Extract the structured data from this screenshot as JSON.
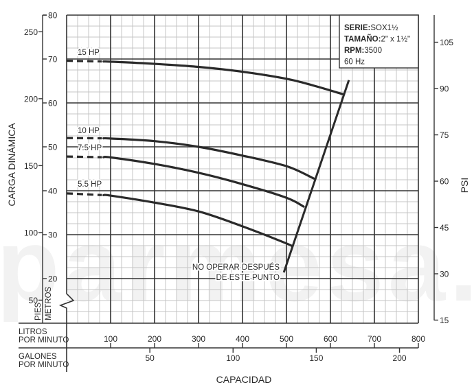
{
  "watermark": "parmesa.com",
  "chart_data": {
    "type": "line",
    "info_box": [
      {
        "key": "SERIE:",
        "value": "SOX1½"
      },
      {
        "key": "TAMAÑO:",
        "value": "2\" x 1½\""
      },
      {
        "key": "RPM:",
        "value": "3500"
      },
      {
        "key": "",
        "value": "60 Hz"
      }
    ],
    "x_axis": {
      "label": "CAPACIDAD",
      "xlim": [
        0,
        800
      ],
      "primary": {
        "label": [
          "LITROS",
          "POR MINUTO"
        ],
        "unit": "LPM",
        "ticks": [
          "100",
          "200",
          "300",
          "400",
          "500",
          "600",
          "700",
          "800"
        ]
      },
      "secondary": {
        "label": [
          "GALONES",
          "POR MINUTO"
        ],
        "unit": "GPM",
        "ticks": [
          "50",
          "100",
          "150",
          "200"
        ]
      }
    },
    "y_axis": {
      "label": "CARGA DINÁMICA",
      "ylim": [
        10,
        80
      ],
      "axis_break": true,
      "meters": {
        "label": "METROS",
        "ticks": [
          "20",
          "30",
          "40",
          "50",
          "60",
          "70",
          "80"
        ]
      },
      "feet": {
        "label": "PIES",
        "ticks": [
          "50",
          "100",
          "150",
          "200",
          "250"
        ]
      }
    },
    "y2_axis": {
      "label": "PSI",
      "ticks": [
        "15",
        "30",
        "45",
        "60",
        "75",
        "90",
        "105"
      ]
    },
    "grid": true,
    "series": [
      {
        "name": "15 HP",
        "dashed_until": 80,
        "points": [
          [
            0,
            69.6
          ],
          [
            50,
            69.5
          ],
          [
            100,
            69.4
          ],
          [
            200,
            68.9
          ],
          [
            300,
            68.2
          ],
          [
            400,
            67.1
          ],
          [
            500,
            65.5
          ],
          [
            560,
            64.0
          ],
          [
            628,
            62.0
          ]
        ]
      },
      {
        "name": "10 HP",
        "dashed_until": 80,
        "points": [
          [
            0,
            52.0
          ],
          [
            50,
            52.0
          ],
          [
            100,
            51.9
          ],
          [
            200,
            51.3
          ],
          [
            300,
            50.0
          ],
          [
            400,
            48.0
          ],
          [
            500,
            45.6
          ],
          [
            562,
            42.8
          ]
        ]
      },
      {
        "name": "7.5 HP",
        "dashed_until": 80,
        "points": [
          [
            0,
            47.8
          ],
          [
            50,
            47.7
          ],
          [
            100,
            47.6
          ],
          [
            200,
            46.1
          ],
          [
            300,
            44.1
          ],
          [
            400,
            41.5
          ],
          [
            500,
            38.4
          ],
          [
            539,
            36.4
          ]
        ]
      },
      {
        "name": "5.5 HP",
        "dashed_until": 80,
        "points": [
          [
            0,
            39.4
          ],
          [
            50,
            39.2
          ],
          [
            100,
            38.9
          ],
          [
            200,
            37.3
          ],
          [
            300,
            35.3
          ],
          [
            400,
            31.9
          ],
          [
            500,
            28.0
          ],
          [
            513,
            27.3
          ]
        ]
      }
    ],
    "limit_line": {
      "label": [
        "NO OPERAR DESPUÉS",
        "DE ESTE PUNTO"
      ],
      "points": [
        [
          642,
          65.2
        ],
        [
          494,
          21.4
        ]
      ]
    },
    "colors": {
      "curve": "#2a2a2a",
      "major_grid": "#333333",
      "minor_grid": "#c4c4c4",
      "watermark": "#f2f2f2"
    }
  }
}
